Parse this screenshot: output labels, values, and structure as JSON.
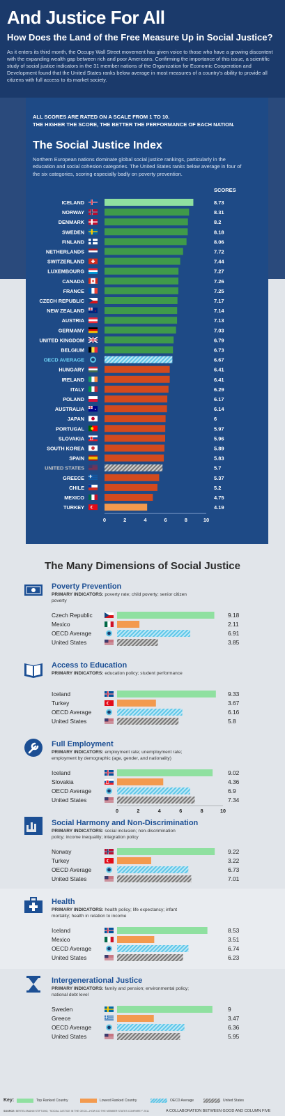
{
  "header": {
    "title": "And Justice For All",
    "subtitle": "How Does the Land of the Free Measure Up in Social Justice?",
    "intro": "As it enters its third month, the Occupy Wall Street movement has given voice to those who have a growing discontent with the expanding wealth gap between rich and poor Americans. Confirming the importance of this issue, a scientific study of social justice indicators in the 31 member nations of the Organization for Economic Cooperation and Development found that the United States ranks below average in most measures of a country's ability to provide all citizens with full access to its market society."
  },
  "scale_note": {
    "line1": "ALL SCORES ARE RATED ON A SCALE FROM 1 TO 10.",
    "line2": "THE HIGHER THE SCORE, THE BETTER THE PERFORMANCE OF EACH NATION."
  },
  "colors": {
    "navy": "#1b3a6b",
    "panel": "#1e4a86",
    "top_ranked": "#8fe0a0",
    "above_avg": "#3f9a4a",
    "below_avg": "#d24a1e",
    "lowest": "#f39a4e",
    "oecd": "#5ec6e8",
    "us": "#bdbdbd",
    "heading_blue": "#1c4f94"
  },
  "chart_data": [
    {
      "type": "bar",
      "orientation": "horizontal",
      "title": "The Social Justice Index",
      "description": "Northern European nations dominate global social justice rankings, particularly in the education and social cohesion categories. The United States ranks below average in four of the six categories, scoring especially badly on poverty prevention.",
      "value_header": "SCORES",
      "xlim": [
        0,
        10
      ],
      "ticks": [
        0,
        2,
        4,
        6,
        8,
        10
      ],
      "categories": [
        "ICELAND",
        "NORWAY",
        "DENMARK",
        "SWEDEN",
        "FINLAND",
        "NETHERLANDS",
        "SWITZERLAND",
        "LUXEMBOURG",
        "CANADA",
        "FRANCE",
        "CZECH REPUBLIC",
        "NEW ZEALAND",
        "AUSTRIA",
        "GERMANY",
        "UNITED KINGDOM",
        "BELGIUM",
        "OECD AVERAGE",
        "HUNGARY",
        "IRELAND",
        "ITALY",
        "POLAND",
        "AUSTRALIA",
        "JAPAN",
        "PORTUGAL",
        "SLOVAKIA",
        "SOUTH KOREA",
        "SPAIN",
        "UNITED STATES",
        "GREECE",
        "CHILE",
        "MEXICO",
        "TURKEY"
      ],
      "value_labels": [
        "8.73",
        "8.31",
        "8.2",
        "8.18",
        "8.06",
        "7.72",
        "7.44",
        "7.27",
        "7.26",
        "7.25",
        "7.17",
        "7.14",
        "7.13",
        "7.03",
        "6.79",
        "6.73",
        "6.67",
        "6.41",
        "6.41",
        "6.29",
        "6.17",
        "6.14",
        "6",
        "5.97",
        "5.96",
        "5.89",
        "5.83",
        "5.7",
        "5.37",
        "5.2",
        "4.75",
        "4.19"
      ],
      "values": [
        8.73,
        8.31,
        8.2,
        8.18,
        8.06,
        7.72,
        7.44,
        7.27,
        7.26,
        7.25,
        7.17,
        7.14,
        7.13,
        7.03,
        6.79,
        6.73,
        6.67,
        6.41,
        6.41,
        6.29,
        6.17,
        6.14,
        6,
        5.97,
        5.96,
        5.89,
        5.83,
        5.7,
        5.37,
        5.2,
        4.75,
        4.19
      ],
      "kinds": [
        "top",
        "above",
        "above",
        "above",
        "above",
        "above",
        "above",
        "above",
        "above",
        "above",
        "above",
        "above",
        "above",
        "above",
        "above",
        "above",
        "oecd",
        "below",
        "below",
        "below",
        "below",
        "below",
        "below",
        "below",
        "below",
        "below",
        "below",
        "us",
        "below",
        "below",
        "below",
        "lowest"
      ]
    },
    {
      "type": "bar",
      "orientation": "horizontal",
      "section_title": "The Many Dimensions of Social Justice",
      "xlim": [
        0,
        10
      ],
      "ticks": [
        0,
        2,
        4,
        6,
        8,
        10
      ],
      "panels": [
        {
          "title": "Poverty Prevention",
          "icon": "money-icon",
          "indicators_label": "PRIMARY INDICATORS:",
          "indicators": "poverty rate; child poverty; senior citizen poverty",
          "countries": [
            "Czech Republic",
            "Mexico",
            "OECD Average",
            "United States"
          ],
          "value_labels": [
            "9.18",
            "2.11",
            "6.91",
            "3.85"
          ],
          "values": [
            9.18,
            2.11,
            6.91,
            3.85
          ]
        },
        {
          "title": "Access to Education",
          "icon": "book-icon",
          "indicators_label": "PRIMARY INDICATORS:",
          "indicators": "education policy; student performance",
          "countries": [
            "Iceland",
            "Turkey",
            "OECD Average",
            "United States"
          ],
          "value_labels": [
            "9.33",
            "3.67",
            "6.16",
            "5.8"
          ],
          "values": [
            9.33,
            3.67,
            6.16,
            5.8
          ]
        },
        {
          "title": "Full Employment",
          "icon": "wrench-icon",
          "indicators_label": "PRIMARY INDICATORS:",
          "indicators": "employment rate; unemployment rate; employment by demographic (age, gender, and nationality)",
          "countries": [
            "Iceland",
            "Slovakia",
            "OECD Average",
            "United States"
          ],
          "value_labels": [
            "9.02",
            "4.36",
            "6.9",
            "7.34"
          ],
          "values": [
            9.02,
            4.36,
            6.9,
            7.34
          ]
        },
        {
          "title": "Social Harmony and Non-Discrimination",
          "icon": "hands-icon",
          "indicators_label": "PRIMARY INDICATORS:",
          "indicators": "social inclusion; non-discrimination policy; income inequality; integration policy",
          "countries": [
            "Norway",
            "Turkey",
            "OECD Average",
            "United States"
          ],
          "value_labels": [
            "9.22",
            "3.22",
            "6.73",
            "7.01"
          ],
          "values": [
            9.22,
            3.22,
            6.73,
            7.01
          ]
        },
        {
          "title": "Health",
          "icon": "medical-kit-icon",
          "indicators_label": "PRIMARY INDICATORS:",
          "indicators": "health policy; life expectancy; infant mortality; health in relation to income",
          "countries": [
            "Iceland",
            "Mexico",
            "OECD Average",
            "United States"
          ],
          "value_labels": [
            "8.53",
            "3.51",
            "6.74",
            "6.23"
          ],
          "values": [
            8.53,
            3.51,
            6.74,
            6.23
          ]
        },
        {
          "title": "Intergenerational Justice",
          "icon": "hourglass-icon",
          "indicators_label": "PRIMARY INDICATORS:",
          "indicators": "family and pension; environmental policy; national debt level",
          "countries": [
            "Sweden",
            "Greece",
            "OECD Average",
            "United States"
          ],
          "value_labels": [
            "9",
            "3.47",
            "6.36",
            "5.95"
          ],
          "values": [
            9,
            3.47,
            6.36,
            5.95
          ]
        }
      ]
    }
  ],
  "footer": {
    "key_label": "Key:",
    "legend": [
      "Top Ranked Country",
      "Lowest Ranked Country",
      "OECD Average",
      "United States"
    ],
    "source_label": "SOURCE:",
    "source": "BERTELSMANN STIFTUNG, \"SOCIAL JUSTICE IN THE OECD—HOW DO THE MEMBER STATES COMPARE?\" 2011",
    "collab": "A COLLABORATION BETWEEN GOOD AND COLUMN FIVE"
  }
}
